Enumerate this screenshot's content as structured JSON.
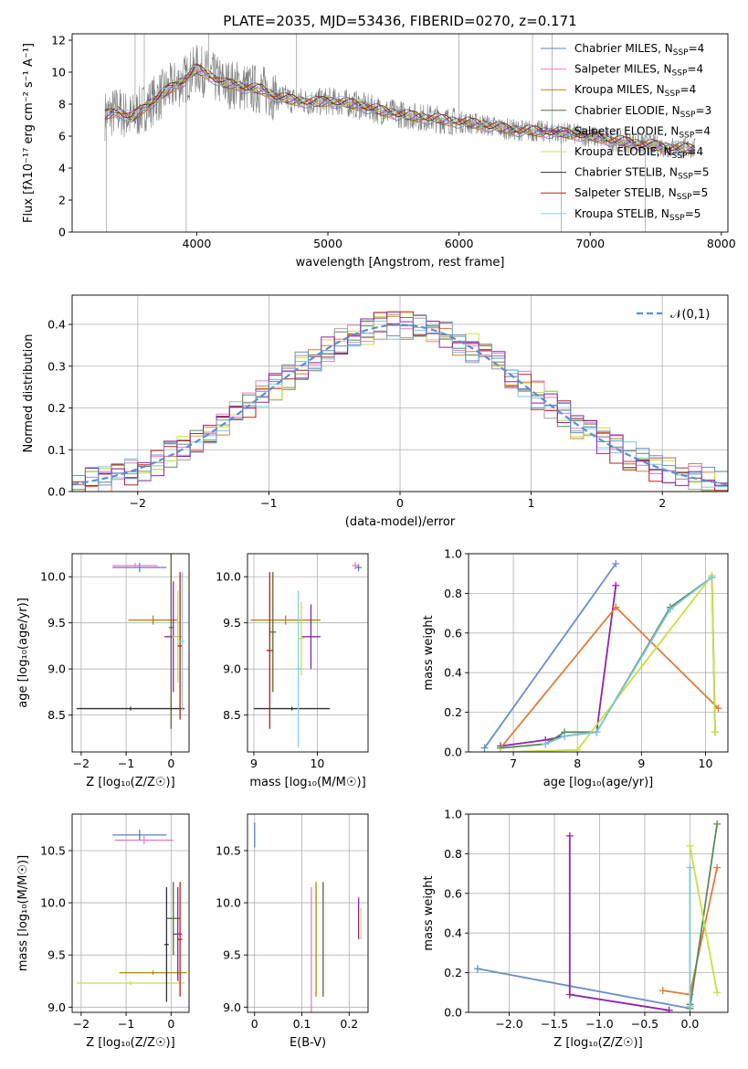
{
  "figure_title": "PLATE=2035, MJD=53436, FIBERID=0270, z=0.171",
  "colors": {
    "series": [
      "#5b7fbf",
      "#e87fc0",
      "#b8860b",
      "#556b2f",
      "#8e24aa",
      "#c8e040",
      "#303030",
      "#b22222",
      "#87ceeb"
    ],
    "lines": [
      "#6a8ec8",
      "#8e24aa",
      "#e07b39",
      "#5a8a5a",
      "#c8e040",
      "#7ec8d8",
      "#2f4f4f",
      "#b22222",
      "#808080"
    ],
    "gaussian": "#5b8ed6"
  },
  "chart_data": [
    {
      "type": "line",
      "id": "spectrum",
      "title": "PLATE=2035, MJD=53436, FIBERID=0270, z=0.171",
      "xlabel": "wavelength [Angstrom, rest frame]",
      "ylabel": "Flux [fλ10⁻¹⁷ erg cm⁻² s⁻¹ A⁻¹]",
      "xlim": [
        3050,
        8050
      ],
      "ylim": [
        0,
        12.4
      ],
      "xticks": [
        4000,
        5000,
        6000,
        7000,
        8000
      ],
      "yticks": [
        0,
        2,
        4,
        6,
        8,
        10,
        12
      ],
      "grid": false,
      "legend_position": "right",
      "data_range": [
        3300,
        7800
      ],
      "observed": {
        "x": [
          3300,
          3400,
          3500,
          3600,
          3700,
          3800,
          3900,
          4000,
          4100,
          4200,
          4300,
          4400,
          4500,
          4600,
          4700,
          4800,
          4900,
          5000,
          5200,
          5400,
          5600,
          5800,
          6000,
          6200,
          6400,
          6600,
          6800,
          7000,
          7200,
          7400,
          7600,
          7800
        ],
        "y": [
          7.3,
          7.6,
          7.1,
          7.8,
          8.4,
          9.0,
          9.5,
          10.2,
          9.8,
          9.3,
          9.2,
          9.0,
          8.9,
          8.5,
          8.3,
          8.2,
          8.1,
          8.2,
          8.0,
          7.6,
          7.3,
          7.1,
          6.9,
          6.7,
          6.4,
          6.3,
          6.2,
          6.0,
          5.7,
          5.5,
          5.3,
          5.2
        ]
      },
      "series": [
        {
          "name": "Chabrier MILES, N_SSP=4",
          "count": "4",
          "label": "Chabrier MILES, N",
          "sub": "SSP"
        },
        {
          "name": "Salpeter MILES, N_SSP=4",
          "count": "4",
          "label": "Salpeter MILES, N",
          "sub": "SSP"
        },
        {
          "name": "Kroupa MILES, N_SSP=4",
          "count": "4",
          "label": "Kroupa MILES, N",
          "sub": "SSP"
        },
        {
          "name": "Chabrier ELODIE, N_SSP=3",
          "count": "3",
          "label": "Chabrier ELODIE, N",
          "sub": "SSP"
        },
        {
          "name": "Salpeter ELODIE, N_SSP=4",
          "count": "4",
          "label": "Salpeter ELODIE, N",
          "sub": "SSP"
        },
        {
          "name": "Kroupa ELODIE, N_SSP=4",
          "count": "4",
          "label": "Kroupa ELODIE, N",
          "sub": "SSP"
        },
        {
          "name": "Chabrier STELIB, N_SSP=5",
          "count": "5",
          "label": "Chabrier STELIB, N",
          "sub": "SSP"
        },
        {
          "name": "Salpeter STELIB, N_SSP=5",
          "count": "5",
          "label": "Salpeter STELIB, N",
          "sub": "SSP"
        },
        {
          "name": "Kroupa STELIB, N_SSP=5",
          "count": "5",
          "label": "Kroupa STELIB, N",
          "sub": "SSP"
        }
      ]
    },
    {
      "type": "histogram",
      "id": "residuals",
      "xlabel": "(data-model)/error",
      "ylabel": "Normed distribution",
      "xlim": [
        -2.5,
        2.5
      ],
      "ylim": [
        0,
        0.47
      ],
      "xticks": [
        -2,
        -1,
        0,
        1,
        2
      ],
      "yticks": [
        0.0,
        0.1,
        0.2,
        0.3,
        0.4
      ],
      "grid": true,
      "legend_position": "top-right",
      "legend": "𝒩(0,1)",
      "bin_width": 0.1,
      "curve": "normal(0,1)"
    },
    {
      "type": "scatter",
      "id": "age-vs-z",
      "xlabel": "Z [log₁₀(Z/Z☉)]",
      "ylabel": "age  [log₁₀(age/yr)]",
      "xlim": [
        -2.2,
        0.4
      ],
      "ylim": [
        8.1,
        10.25
      ],
      "xticks": [
        -2,
        -1,
        0
      ],
      "yticks": [
        8.5,
        9.0,
        9.5,
        10.0
      ],
      "grid": true,
      "points": [
        {
          "x": -0.7,
          "y": 10.1,
          "xe": 0.6,
          "ye": 0.05
        },
        {
          "x": -0.8,
          "y": 10.12,
          "xe": 0.5,
          "ye": 0.03
        },
        {
          "x": -0.4,
          "y": 9.53,
          "xe": 0.55,
          "ye": 0.05
        },
        {
          "x": 0.0,
          "y": 9.45,
          "xe": 0.05,
          "ye": 1.1
        },
        {
          "x": 0.05,
          "y": 9.35,
          "xe": 0.2,
          "ye": 0.6
        },
        {
          "x": 0.15,
          "y": 9.35,
          "xe": 0.12,
          "ye": 0.5
        },
        {
          "x": -0.9,
          "y": 8.57,
          "xe": 1.2,
          "ye": 0.02
        },
        {
          "x": 0.2,
          "y": 9.25,
          "xe": 0.05,
          "ye": 0.8
        },
        {
          "x": 0.25,
          "y": 9.3,
          "xe": 0.05,
          "ye": 0.75
        }
      ]
    },
    {
      "type": "scatter",
      "id": "age-vs-mass",
      "xlabel": "mass [log₁₀(M/M☉)]",
      "ylabel": "",
      "xlim": [
        8.9,
        10.8
      ],
      "ylim": [
        8.1,
        10.25
      ],
      "xticks": [
        9,
        10
      ],
      "yticks": [
        8.5,
        9.0,
        9.5,
        10.0
      ],
      "grid": true,
      "points": [
        {
          "x": 10.65,
          "y": 10.1,
          "xe": 0.05,
          "ye": 0.04
        },
        {
          "x": 10.6,
          "y": 10.12,
          "xe": 0.05,
          "ye": 0.04
        },
        {
          "x": 9.5,
          "y": 9.53,
          "xe": 0.55,
          "ye": 0.05
        },
        {
          "x": 9.3,
          "y": 9.4,
          "xe": 0.05,
          "ye": 0.65
        },
        {
          "x": 9.9,
          "y": 9.35,
          "xe": 0.15,
          "ye": 0.35
        },
        {
          "x": 9.75,
          "y": 9.33,
          "xe": 0.05,
          "ye": 0.4
        },
        {
          "x": 9.6,
          "y": 8.57,
          "xe": 0.6,
          "ye": 0.02
        },
        {
          "x": 9.25,
          "y": 9.2,
          "xe": 0.05,
          "ye": 0.85
        },
        {
          "x": 9.7,
          "y": 9.0,
          "xe": 0.05,
          "ye": 0.85
        }
      ]
    },
    {
      "type": "line",
      "id": "weight-vs-age",
      "xlabel": "age  [log₁₀(age/yr)]",
      "ylabel": "mass weight",
      "xlim": [
        6.3,
        10.35
      ],
      "ylim": [
        0,
        1.0
      ],
      "xticks": [
        7,
        8,
        9,
        10
      ],
      "yticks": [
        0.0,
        0.2,
        0.4,
        0.6,
        0.8,
        1.0
      ],
      "grid": true,
      "series": [
        {
          "x": [
            6.55,
            8.6
          ],
          "y": [
            0.02,
            0.95
          ]
        },
        {
          "x": 6.8,
          "x2": [
            6.8,
            7.5,
            7.8,
            8.3,
            8.6
          ],
          "y": [
            0.03,
            0.06,
            0.08,
            0.1,
            0.84
          ]
        },
        {
          "x": [
            6.8,
            8.6,
            10.2
          ],
          "y": [
            0.02,
            0.73,
            0.22
          ]
        },
        {
          "x": [
            6.8,
            7.5,
            7.8,
            8.3,
            9.45,
            10.1,
            10.15
          ],
          "y": [
            0.02,
            0.04,
            0.1,
            0.1,
            0.73,
            0.88,
            0.1
          ]
        },
        {
          "x": [
            6.8,
            8.0,
            10.1,
            10.15
          ],
          "y": [
            0.0,
            0.01,
            0.89,
            0.1
          ]
        },
        {
          "x": [
            7.5,
            7.8,
            8.3,
            9.45,
            10.1
          ],
          "y": [
            0.04,
            0.08,
            0.1,
            0.72,
            0.88
          ]
        }
      ]
    },
    {
      "type": "scatter",
      "id": "mass-vs-z",
      "xlabel": "Z [log₁₀(Z/Z☉)]",
      "ylabel": "mass [log₁₀(M/M☉)]",
      "xlim": [
        -2.2,
        0.4
      ],
      "ylim": [
        8.95,
        10.85
      ],
      "xticks": [
        -2,
        -1,
        0
      ],
      "yticks": [
        9.0,
        9.5,
        10.0,
        10.5
      ],
      "grid": true,
      "points": [
        {
          "x": -0.7,
          "y": 10.65,
          "xe": 0.6,
          "ye": 0.05
        },
        {
          "x": -0.6,
          "y": 10.6,
          "xe": 0.65,
          "ye": 0.04
        },
        {
          "x": -0.4,
          "y": 9.33,
          "xe": 0.75,
          "ye": 0.02
        },
        {
          "x": 0.05,
          "y": 9.85,
          "xe": 0.15,
          "ye": 0.35
        },
        {
          "x": 0.15,
          "y": 9.7,
          "xe": 0.1,
          "ye": 0.45
        },
        {
          "x": -0.9,
          "y": 9.23,
          "xe": 1.2,
          "ye": 0.02
        },
        {
          "x": -0.1,
          "y": 9.6,
          "xe": 0.05,
          "ye": 0.55
        },
        {
          "x": 0.2,
          "y": 9.65,
          "xe": 0.05,
          "ye": 0.55
        }
      ]
    },
    {
      "type": "scatter",
      "id": "mass-vs-ebv",
      "xlabel": "E(B-V)",
      "ylabel": "",
      "xlim": [
        -0.015,
        0.24
      ],
      "ylim": [
        8.95,
        10.85
      ],
      "xticks": [
        0.0,
        0.1,
        0.2
      ],
      "yticks": [
        9.0,
        9.5,
        10.0,
        10.5
      ],
      "grid": true,
      "points": [
        {
          "x": 0.0,
          "y": 10.65,
          "ye": 0.12
        },
        {
          "x": 0.12,
          "y": 9.55,
          "ye": 0.6
        },
        {
          "x": 0.13,
          "y": 9.65,
          "ye": 0.55
        },
        {
          "x": 0.145,
          "y": 9.65,
          "ye": 0.55
        },
        {
          "x": 0.22,
          "y": 9.85,
          "ye": 0.2
        },
        {
          "x": 0.225,
          "y": 9.8,
          "ye": 0.15
        }
      ]
    },
    {
      "type": "line",
      "id": "weight-vs-z",
      "xlabel": "Z [log₁₀(Z/Z☉)]",
      "ylabel": "mass weight",
      "xlim": [
        -2.45,
        0.42
      ],
      "ylim": [
        0,
        1.0
      ],
      "xticks": [
        -2.0,
        -1.5,
        -1.0,
        -0.5,
        0.0
      ],
      "yticks": [
        0.0,
        0.2,
        0.4,
        0.6,
        0.8,
        1.0
      ],
      "grid": true,
      "series": [
        {
          "x": [
            -2.35,
            0.0
          ],
          "y": [
            0.22,
            0.02
          ]
        },
        {
          "x": [
            -1.33,
            -1.33,
            -0.23
          ],
          "y": [
            0.89,
            0.09,
            0.01
          ]
        },
        {
          "x": [
            -0.3,
            0.0,
            0.3
          ],
          "y": [
            0.11,
            0.09,
            0.73
          ]
        },
        {
          "x": [
            0.0,
            0.0,
            0.3
          ],
          "y": [
            0.04,
            0.02,
            0.95
          ]
        },
        {
          "x": [
            0.0,
            0.3
          ],
          "y": [
            0.84,
            0.1
          ]
        },
        {
          "x": [
            0.0,
            0.0
          ],
          "y": [
            0.73,
            0.03
          ]
        }
      ]
    }
  ]
}
